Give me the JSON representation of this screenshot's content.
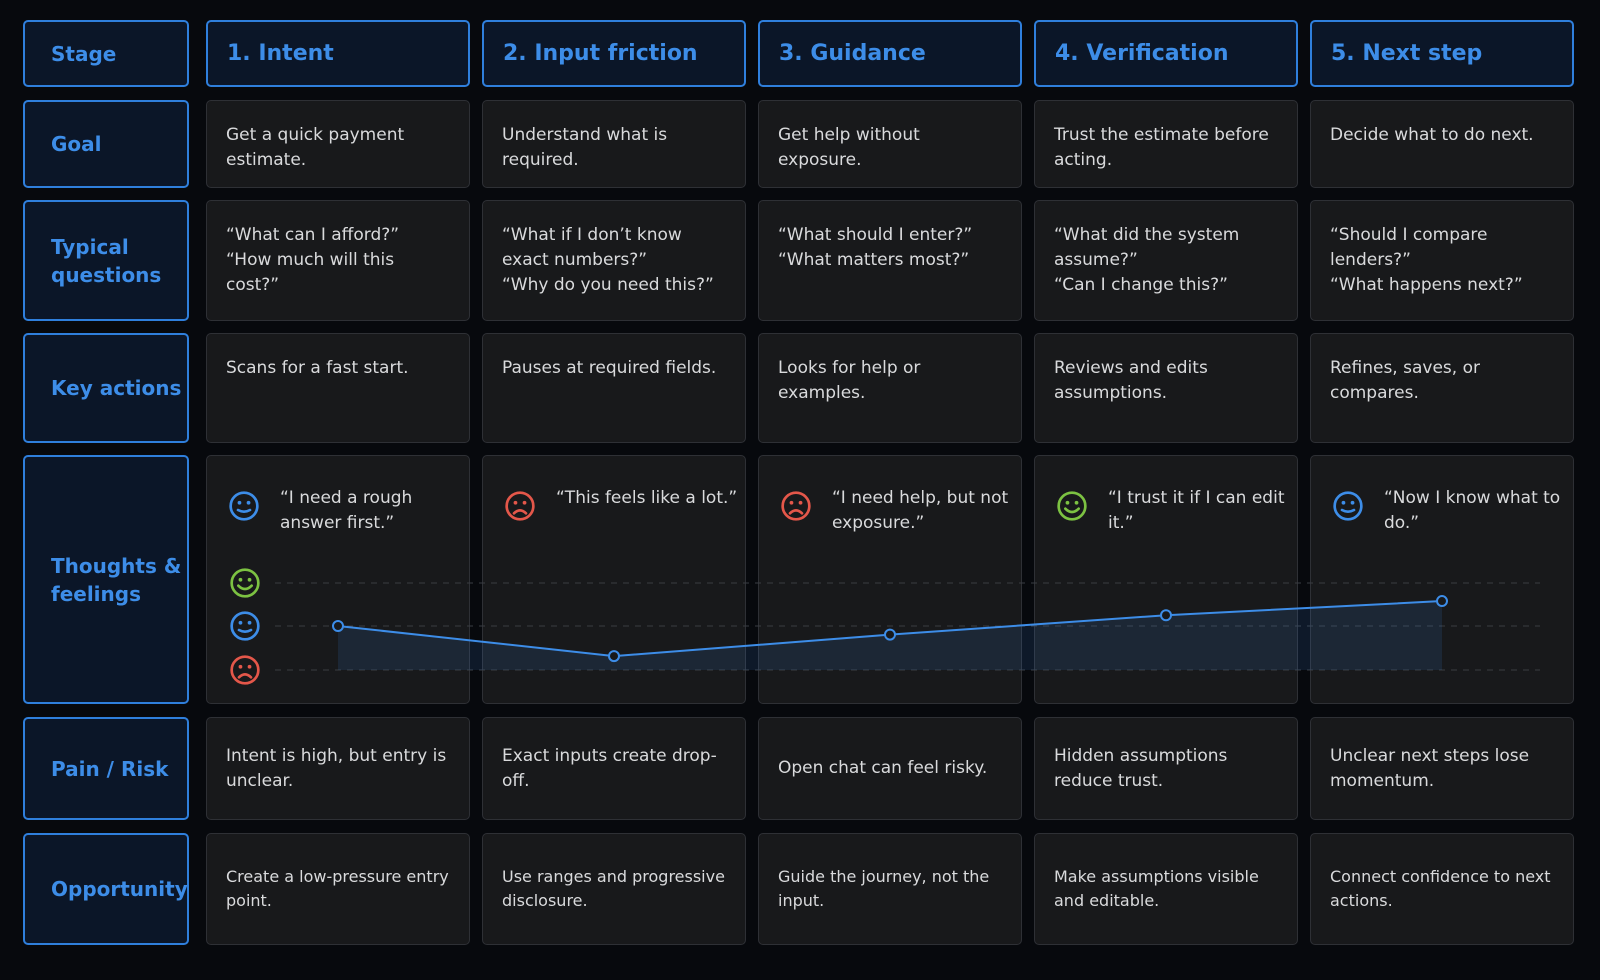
{
  "row_labels": {
    "stage": "Stage",
    "goal": "Goal",
    "questions": "Typical questions",
    "actions": "Key actions",
    "thoughts": "Thoughts & feelings",
    "pain": "Pain / Risk",
    "opportunity": "Opportunity"
  },
  "stages": [
    {
      "title": "1. Intent",
      "goal": "Get a quick payment estimate.",
      "questions": [
        "“What can I afford?”",
        "“How much will this cost?”"
      ],
      "actions": "Scans for a fast start.",
      "quote": "“I need a rough answer first.”",
      "mood": "neutral",
      "pain": "Intent is high, but entry is unclear.",
      "opportunity": "Create a low-pressure entry point."
    },
    {
      "title": "2. Input friction",
      "goal": "Understand what is required.",
      "questions": [
        "“What if I don’t know exact numbers?”",
        "“Why do you need this?”"
      ],
      "actions": "Pauses at required fields.",
      "quote": "“This feels like a lot.”",
      "mood": "negative",
      "pain": "Exact inputs create drop-off.",
      "opportunity": "Use ranges and progressive disclosure."
    },
    {
      "title": "3. Guidance",
      "goal": "Get help without exposure.",
      "questions": [
        "“What should I enter?”",
        "“What matters most?”"
      ],
      "actions": "Looks for help or examples.",
      "quote": "“I need help, but not exposure.”",
      "mood": "negative",
      "pain": "Open chat can feel risky.",
      "opportunity": "Guide the journey, not the input."
    },
    {
      "title": "4. Verification",
      "goal": "Trust the estimate before acting.",
      "questions": [
        "“What did the system assume?”",
        "“Can I change this?”"
      ],
      "actions": "Reviews and edits assumptions.",
      "quote": "“I trust it if I can edit it.”",
      "mood": "positive",
      "pain": "Hidden assumptions reduce trust.",
      "opportunity": "Make assumptions visible and editable."
    },
    {
      "title": "5. Next step",
      "goal": "Decide what to do next.",
      "questions": [
        "“Should I compare lenders?”",
        "“What happens next?”"
      ],
      "actions": "Refines, saves, or compares.",
      "quote": "“Now I know what to do.”",
      "mood": "neutral",
      "pain": "Unclear next steps lose momentum.",
      "opportunity": "Connect confidence to next actions."
    }
  ],
  "emotion_curve": {
    "scale": [
      "positive",
      "neutral",
      "negative"
    ],
    "values": [
      0.0,
      -0.7,
      -0.2,
      0.25,
      0.58
    ]
  },
  "colors": {
    "accent": "#3d8de8",
    "positive": "#7cc242",
    "neutral": "#3d8de8",
    "negative": "#e4574a"
  }
}
